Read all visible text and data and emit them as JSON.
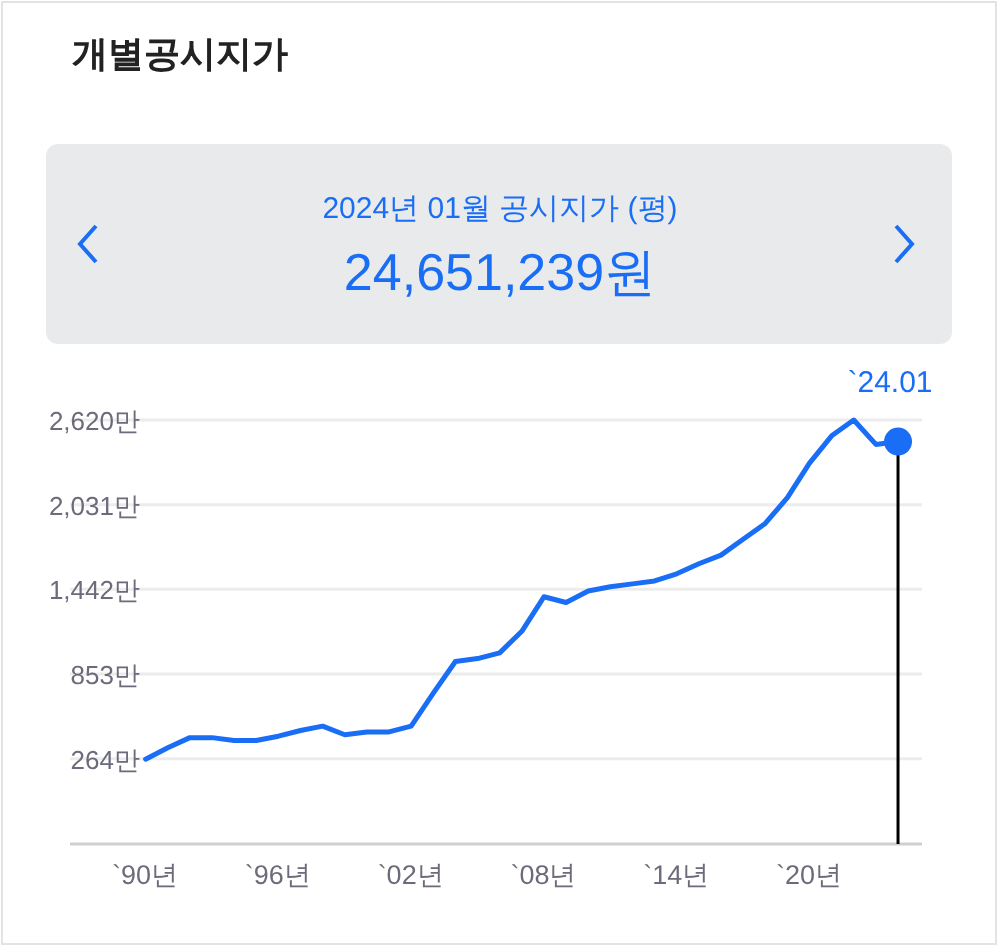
{
  "chart_data": {
    "type": "line",
    "title": "개별공시지가",
    "subtitle": "2024년 01월 공시지가 (평)",
    "annotations": [
      "24,651,239원"
    ],
    "x": [
      "1990",
      "1991",
      "1992",
      "1993",
      "1994",
      "1995",
      "1996",
      "1997",
      "1998",
      "1999",
      "2000",
      "2001",
      "2002",
      "2003",
      "2004",
      "2005",
      "2006",
      "2007",
      "2008",
      "2009",
      "2010",
      "2011",
      "2012",
      "2013",
      "2014",
      "2015",
      "2016",
      "2017",
      "2018",
      "2019",
      "2020",
      "2021",
      "2022",
      "2023",
      "2024-01"
    ],
    "series": [
      {
        "color": "#1a6ef5",
        "values": [
          260,
          340,
          410,
          410,
          390,
          390,
          420,
          460,
          490,
          430,
          450,
          450,
          490,
          720,
          940,
          960,
          1000,
          1150,
          1390,
          1350,
          1430,
          1460,
          1480,
          1500,
          1550,
          1620,
          1680,
          1790,
          1900,
          2080,
          2320,
          2510,
          2620,
          2450,
          2470
        ]
      }
    ],
    "xlim": [
      "1986-08",
      "2025-02"
    ],
    "xticks": [
      {
        "value": "1990",
        "label": "`90년"
      },
      {
        "value": "1996",
        "label": "`96년"
      },
      {
        "value": "2002",
        "label": "`02년"
      },
      {
        "value": "2008",
        "label": "`08년"
      },
      {
        "value": "2014",
        "label": "`14년"
      },
      {
        "value": "2020",
        "label": "`20년"
      }
    ],
    "ylim": [
      -330,
      2620
    ],
    "yticks": [
      {
        "value": 264,
        "label": "264만"
      },
      {
        "value": 853,
        "label": "853만"
      },
      {
        "value": 1442,
        "label": "1,442만"
      },
      {
        "value": 2031,
        "label": "2,031만"
      },
      {
        "value": 2620,
        "label": "2,620만"
      }
    ],
    "ref_lines": [
      {
        "axis": "x",
        "value": "2024-01",
        "label": "`24.01",
        "color": "#000000"
      }
    ],
    "grid": "y",
    "marker": "none",
    "line_style": "solid"
  }
}
